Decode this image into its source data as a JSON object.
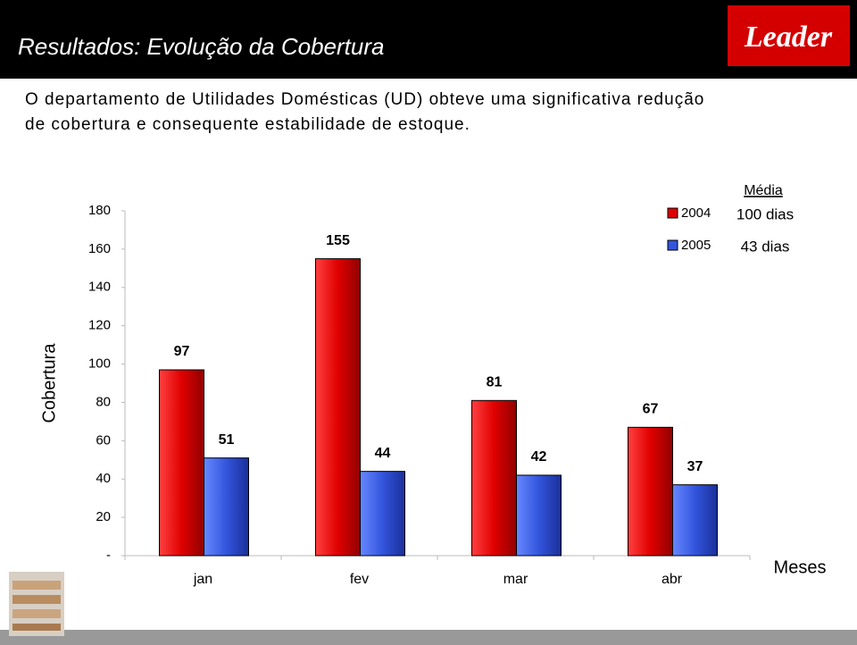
{
  "header": {
    "title": "Resultados: Evolução da Cobertura",
    "logo": "Leader",
    "text_lines": [
      "O departamento de Utilidades Domésticas (UD) obteve uma significativa redução",
      "de cobertura e consequente estabilidade de estoque."
    ]
  },
  "chart_data": {
    "type": "bar",
    "categories": [
      "jan",
      "fev",
      "mar",
      "abr"
    ],
    "series": [
      {
        "name": "2004",
        "color": "#e00000",
        "values": [
          97,
          155,
          81,
          67
        ]
      },
      {
        "name": "2005",
        "color": "#3355dd",
        "values": [
          51,
          44,
          42,
          37
        ]
      }
    ],
    "ylim": [
      0,
      180
    ],
    "yticks": [
      {
        "value": 0,
        "label": "-"
      },
      20,
      40,
      60,
      80,
      100,
      120,
      140,
      160,
      180
    ],
    "y_label": "Cobertura",
    "x_label": "Meses",
    "legend_title": "Média",
    "legend_notes": [
      "100 dias",
      "43 dias"
    ],
    "legend": "top-right",
    "grid": false
  }
}
